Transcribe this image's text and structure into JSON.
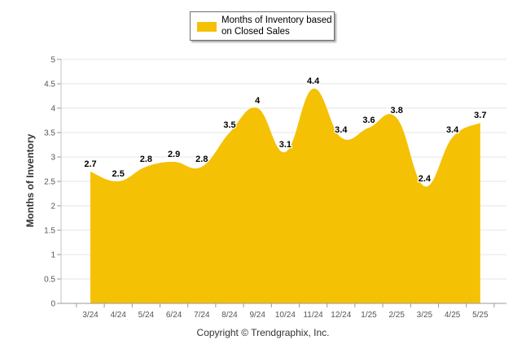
{
  "chart_data": {
    "type": "area",
    "categories": [
      "3/24",
      "4/24",
      "5/24",
      "6/24",
      "7/24",
      "8/24",
      "9/24",
      "10/24",
      "11/24",
      "12/24",
      "1/25",
      "2/25",
      "3/25",
      "4/25",
      "5/25"
    ],
    "series": [
      {
        "name": "Months of Inventory based on Closed Sales",
        "values": [
          2.7,
          2.5,
          2.8,
          2.9,
          2.8,
          3.5,
          4,
          3.1,
          4.4,
          3.4,
          3.6,
          3.8,
          2.4,
          3.4,
          3.7
        ]
      }
    ],
    "data_labels": [
      "2.7",
      "2.5",
      "2.8",
      "2.9",
      "2.8",
      "3.5",
      "4",
      "3.1",
      "4.4",
      "3.4",
      "3.6",
      "3.8",
      "2.4",
      "3.4",
      "3.7"
    ],
    "ylabel": "Months of Inventory",
    "ylim": [
      0,
      5
    ],
    "yticks": [
      "0",
      "0.5",
      "1",
      "1.5",
      "2",
      "2.5",
      "3",
      "3.5",
      "4",
      "4.5",
      "5"
    ],
    "grid": true,
    "legend_position": "top-center",
    "series_color": "#F5C105"
  },
  "legend": {
    "text": "Months of Inventory based on Closed Sales"
  },
  "footer": {
    "copyright": "Copyright © Trendgraphix, Inc."
  }
}
